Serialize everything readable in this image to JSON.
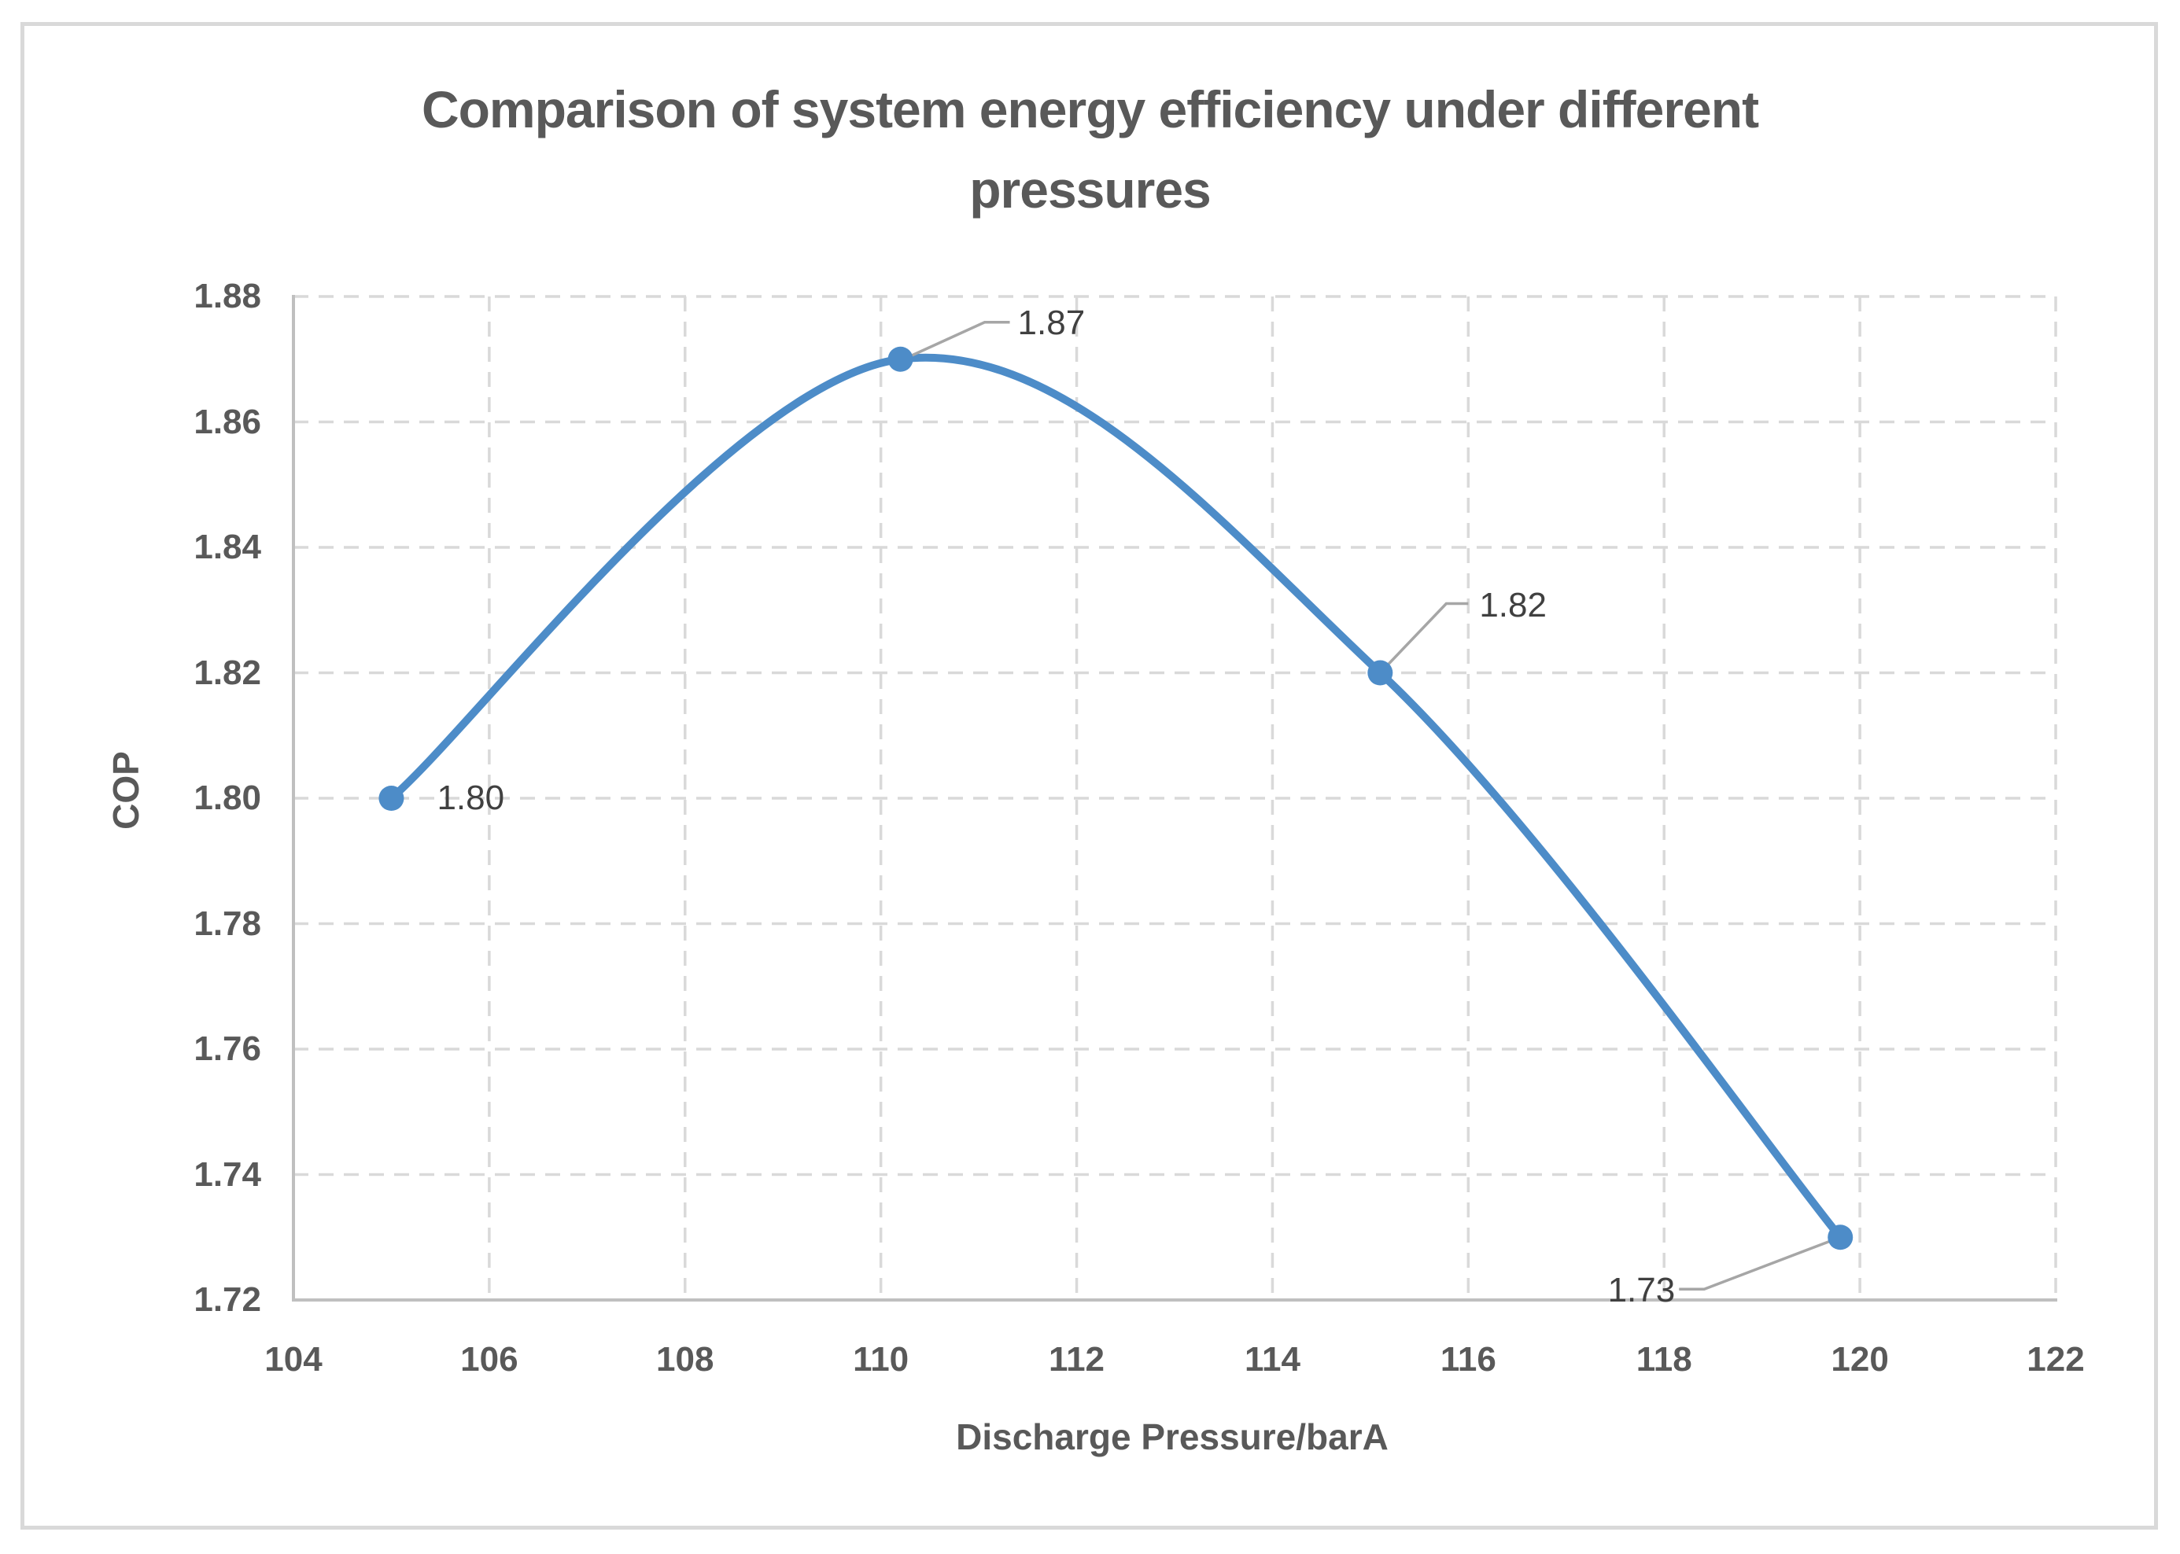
{
  "chart": {
    "title": "Comparison of system energy efficiency under different pressures",
    "xlabel": "Discharge Pressure/barA",
    "ylabel": "COP"
  },
  "chart_data": {
    "type": "line",
    "title": "Comparison of system energy efficiency under different pressures",
    "xlabel": "Discharge Pressure/barA",
    "ylabel": "COP",
    "x": [
      105,
      110.2,
      115.1,
      119.8
    ],
    "y": [
      1.8,
      1.87,
      1.82,
      1.73
    ],
    "point_labels": [
      "1.80",
      "1.87",
      "1.82",
      "1.73"
    ],
    "xlim": [
      104,
      122
    ],
    "ylim": [
      1.72,
      1.88
    ],
    "xticks": [
      104,
      106,
      108,
      110,
      112,
      114,
      116,
      118,
      120,
      122
    ],
    "yticks": [
      1.72,
      1.74,
      1.76,
      1.78,
      1.8,
      1.82,
      1.84,
      1.86,
      1.88
    ],
    "grid": "dashed-both",
    "legend": "none",
    "marker": "circle",
    "smooth": true,
    "colors": {
      "series": "#4d8cc8",
      "gridline": "#d9d9d9",
      "axis_line": "#bfbfbf",
      "leader_line": "#a6a6a6",
      "title_text": "#595959",
      "data_label_text": "#404040"
    }
  }
}
